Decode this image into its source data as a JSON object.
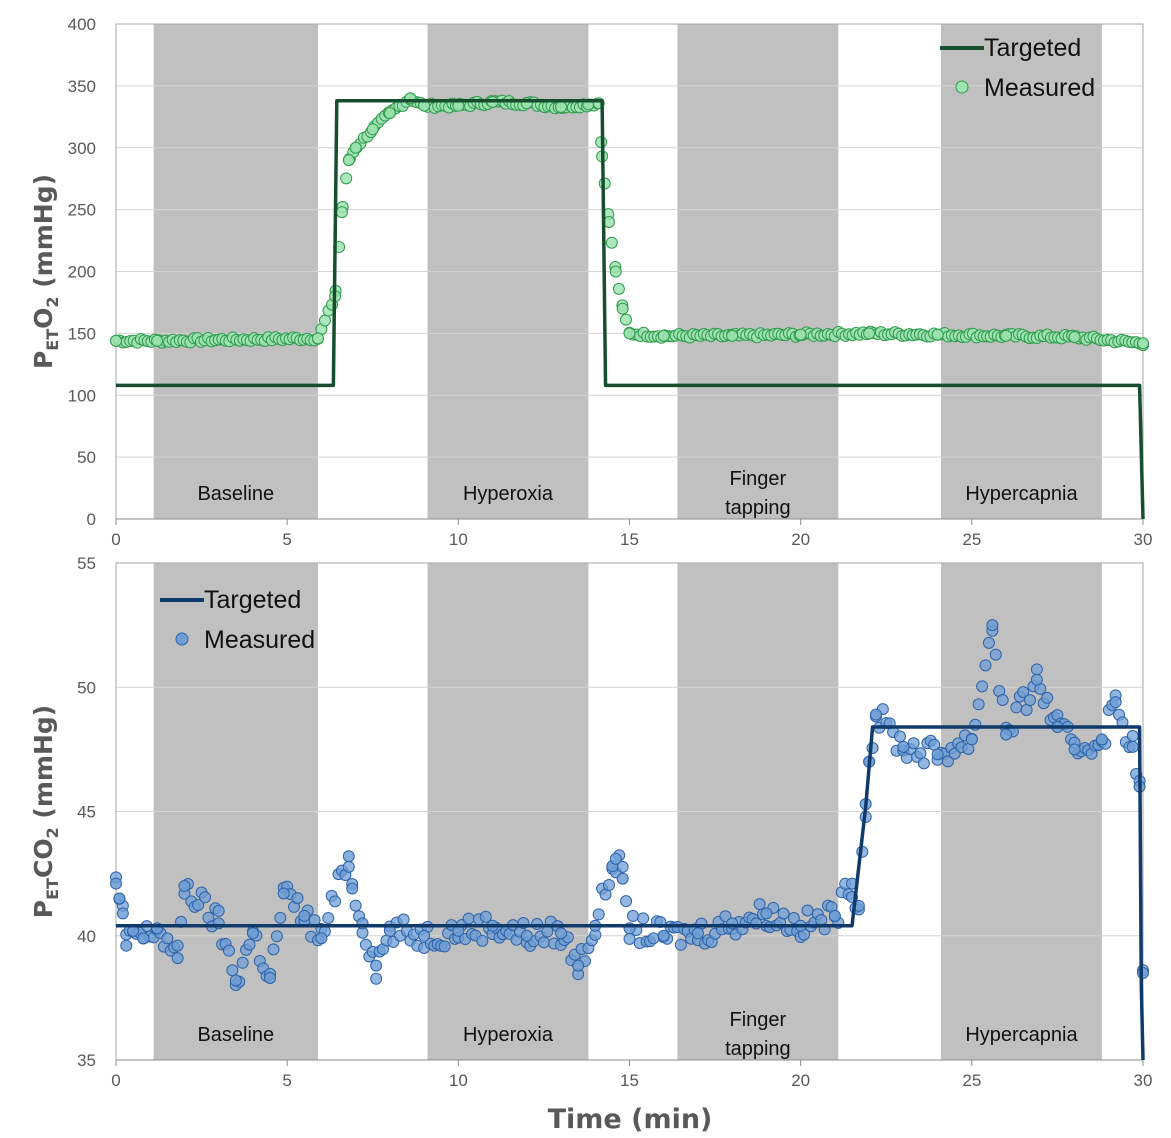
{
  "chart_data": [
    {
      "type": "line",
      "title": "",
      "ylabel": {
        "main": "P",
        "sub": "ET",
        "mid": "O",
        "sub2": "2",
        "rest": " (mmHg)"
      },
      "xlabel": "",
      "xlim": [
        0,
        30
      ],
      "ylim": [
        0,
        400
      ],
      "x_ticks": [
        0,
        5,
        10,
        15,
        20,
        25,
        30
      ],
      "y_ticks": [
        0,
        50,
        100,
        150,
        200,
        250,
        300,
        350,
        400
      ],
      "phases": [
        {
          "label": "Baseline",
          "start": 1.1,
          "end": 5.9
        },
        {
          "label": "Hyperoxia",
          "start": 9.1,
          "end": 13.8
        },
        {
          "label": "Finger\ntapping",
          "start": 16.4,
          "end": 21.1
        },
        {
          "label": "Hypercapnia",
          "start": 24.1,
          "end": 28.8
        }
      ],
      "legend": {
        "targeted": "Targeted",
        "measured": "Measured",
        "position": "top-right"
      },
      "colors": {
        "targeted": "#174f2e",
        "measured_fill": "#9fe3b0",
        "measured_stroke": "#2e9a4c"
      },
      "series": [
        {
          "name": "Targeted",
          "kind": "line",
          "x": [
            0,
            6.35,
            6.45,
            14.2,
            14.3,
            29.9,
            30.0
          ],
          "y": [
            108,
            108,
            338,
            338,
            108,
            108,
            0
          ]
        },
        {
          "name": "Measured",
          "kind": "scatter",
          "x": [
            0,
            1.2,
            5.9,
            6.4,
            6.6,
            6.8,
            7.0,
            7.5,
            8.0,
            8.6,
            9.0,
            10,
            11,
            12,
            13,
            13.8,
            14.1,
            14.2,
            14.4,
            14.6,
            14.8,
            15.0,
            16,
            18,
            20,
            22,
            24,
            26,
            28,
            30
          ],
          "y": [
            144,
            144,
            146,
            180,
            248,
            290,
            300,
            315,
            328,
            340,
            334,
            334,
            337,
            336,
            333,
            335,
            336,
            293,
            240,
            200,
            170,
            150,
            148,
            148,
            149,
            150,
            149,
            148,
            147,
            142
          ]
        }
      ]
    },
    {
      "type": "line",
      "title": "",
      "ylabel": {
        "main": "P",
        "sub": "ET",
        "mid": "CO",
        "sub2": "2",
        "rest": " (mmHg)"
      },
      "xlabel": "Time (min)",
      "xlim": [
        0,
        30
      ],
      "ylim": [
        35,
        55
      ],
      "x_ticks": [
        0,
        5,
        10,
        15,
        20,
        25,
        30
      ],
      "y_ticks": [
        35,
        40,
        45,
        50,
        55
      ],
      "phases": [
        {
          "label": "Baseline",
          "start": 1.1,
          "end": 5.9
        },
        {
          "label": "Hyperoxia",
          "start": 9.1,
          "end": 13.8
        },
        {
          "label": "Finger\ntapping",
          "start": 16.4,
          "end": 21.1
        },
        {
          "label": "Hypercapnia",
          "start": 24.1,
          "end": 28.8
        }
      ],
      "legend": {
        "targeted": "Targeted",
        "measured": "Measured",
        "position": "top-left"
      },
      "colors": {
        "targeted": "#0f3a6a",
        "measured_fill": "#6f9fd6",
        "measured_stroke": "#2e62a8"
      },
      "series": [
        {
          "name": "Targeted",
          "kind": "line",
          "x": [
            0,
            21.5,
            21.9,
            22.1,
            29.9,
            29.95,
            30.0
          ],
          "y": [
            40.4,
            40.4,
            45.2,
            48.4,
            48.4,
            38.0,
            35.0
          ]
        },
        {
          "name": "Measured",
          "kind": "scatter",
          "x": [
            0,
            0.1,
            0.2,
            0.3,
            0.5,
            0.8,
            1.2,
            1.8,
            2.0,
            3.0,
            3.5,
            4.0,
            4.5,
            4.9,
            5.5,
            6.0,
            6.8,
            6.9,
            7.2,
            7.6,
            8.0,
            9.0,
            10,
            11,
            12,
            13,
            13.5,
            14.0,
            14.5,
            14.6,
            14.8,
            15.0,
            16,
            17,
            18,
            19,
            20,
            21,
            21.5,
            21.7,
            21.9,
            22.0,
            22.2,
            23,
            24,
            25,
            25.6,
            26,
            26.9,
            27.5,
            28,
            28.8,
            29.2,
            29.7,
            29.9,
            30.0
          ],
          "y": [
            42.1,
            41.5,
            40.9,
            39.6,
            40.2,
            39.9,
            40.3,
            39.1,
            42.0,
            40.5,
            38.2,
            40.1,
            38.3,
            41.7,
            40.8,
            39.9,
            43.2,
            41.9,
            40.5,
            38.8,
            40.2,
            40.0,
            40.2,
            40.4,
            40.0,
            40.1,
            38.8,
            40.4,
            42.8,
            43.1,
            42.3,
            40.3,
            40.0,
            40.1,
            40.5,
            40.9,
            40.4,
            40.8,
            42.1,
            41.2,
            45.3,
            47.0,
            48.9,
            47.6,
            47.3,
            47.9,
            52.5,
            48.1,
            50.3,
            48.4,
            47.5,
            47.9,
            49.4,
            47.6,
            46.0,
            38.5
          ]
        }
      ]
    }
  ],
  "x_axis_title": "Time (min)"
}
